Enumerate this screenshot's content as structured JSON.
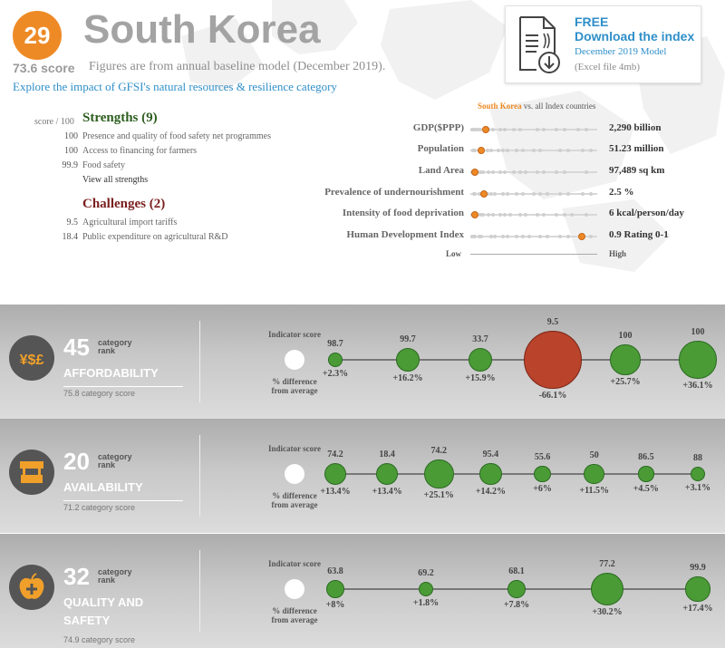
{
  "header": {
    "rank": "29",
    "country": "South Korea",
    "overall_score": "73.6 score",
    "baseline_note": "Figures are from annual baseline model (December 2019).",
    "explore_link": "Explore the impact of GFSI's natural resources & resilience category"
  },
  "download": {
    "free": "FREE",
    "title": "Download the index",
    "model": "December 2019 Model",
    "size": "(Excel file 4mb)",
    "icon": "document-download-icon"
  },
  "strengths": {
    "score_header": "score / 100",
    "title": "Strengths (9)",
    "items": [
      {
        "score": "100",
        "label": "Presence and quality of food safety net programmes"
      },
      {
        "score": "100",
        "label": "Access to financing for farmers"
      },
      {
        "score": "99.9",
        "label": "Food safety"
      }
    ],
    "view_all": "View all strengths"
  },
  "challenges": {
    "title": "Challenges (2)",
    "items": [
      {
        "score": "9.5",
        "label": "Agricultural import tariffs"
      },
      {
        "score": "18.4",
        "label": "Public expenditure on agricultural R&D"
      }
    ]
  },
  "comparison": {
    "title_country": "South Korea",
    "title_rest": "vs. all Index countries",
    "low": "Low",
    "high": "High",
    "indicators": [
      {
        "label": "GDP($PPP)",
        "value": "2,290 billion",
        "position": 0.1
      },
      {
        "label": "Population",
        "value": "51.23 million",
        "position": 0.06
      },
      {
        "label": "Land Area",
        "value": "97,489 sq km",
        "position": 0.01
      },
      {
        "label": "Prevalence of undernourishment",
        "value": "2.5 %",
        "position": 0.08
      },
      {
        "label": "Intensity of food deprivation",
        "value": "6 kcal/person/day",
        "position": 0.01
      },
      {
        "label": "Human Development Index",
        "value": "0.9 Rating 0-1",
        "position": 0.9
      }
    ]
  },
  "legend": {
    "indicator_score": "Indicator score",
    "pct_diff": "% difference from average"
  },
  "categories": [
    {
      "rank": "45",
      "rank_label_1": "category",
      "rank_label_2": "rank",
      "name": "AFFORDABILITY",
      "score": "75.8 category score",
      "icon": "currency-icon",
      "bubbles": [
        {
          "score": "98.7",
          "diff": "+2.3%",
          "d": 2.3
        },
        {
          "score": "99.7",
          "diff": "+16.2%",
          "d": 16.2
        },
        {
          "score": "33.7",
          "diff": "+15.9%",
          "d": 15.9
        },
        {
          "score": "9.5",
          "diff": "-66.1%",
          "d": -66.1
        },
        {
          "score": "100",
          "diff": "+25.7%",
          "d": 25.7
        },
        {
          "score": "100",
          "diff": "+36.1%",
          "d": 36.1
        }
      ]
    },
    {
      "rank": "20",
      "rank_label_1": "category",
      "rank_label_2": "rank",
      "name": "AVAILABILITY",
      "score": "71.2 category score",
      "icon": "market-stall-icon",
      "bubbles": [
        {
          "score": "74.2",
          "diff": "+13.4%",
          "d": 13.4
        },
        {
          "score": "18.4",
          "diff": "+13.4%",
          "d": 13.4
        },
        {
          "score": "74.2",
          "diff": "+25.1%",
          "d": 25.1
        },
        {
          "score": "95.4",
          "diff": "+14.2%",
          "d": 14.2
        },
        {
          "score": "55.6",
          "diff": "+6%",
          "d": 6
        },
        {
          "score": "50",
          "diff": "+11.5%",
          "d": 11.5
        },
        {
          "score": "86.5",
          "diff": "+4.5%",
          "d": 4.5
        },
        {
          "score": "88",
          "diff": "+3.1%",
          "d": 3.1
        }
      ]
    },
    {
      "rank": "32",
      "rank_label_1": "category",
      "rank_label_2": "rank",
      "name": "QUALITY AND SAFETY",
      "score": "74.9 category score",
      "icon": "apple-plus-icon",
      "bubbles": [
        {
          "score": "63.8",
          "diff": "+8%",
          "d": 8
        },
        {
          "score": "69.2",
          "diff": "+1.8%",
          "d": 1.8
        },
        {
          "score": "68.1",
          "diff": "+7.8%",
          "d": 7.8
        },
        {
          "score": "77.2",
          "diff": "+30.2%",
          "d": 30.2
        },
        {
          "score": "99.9",
          "diff": "+17.4%",
          "d": 17.4
        }
      ]
    }
  ]
}
